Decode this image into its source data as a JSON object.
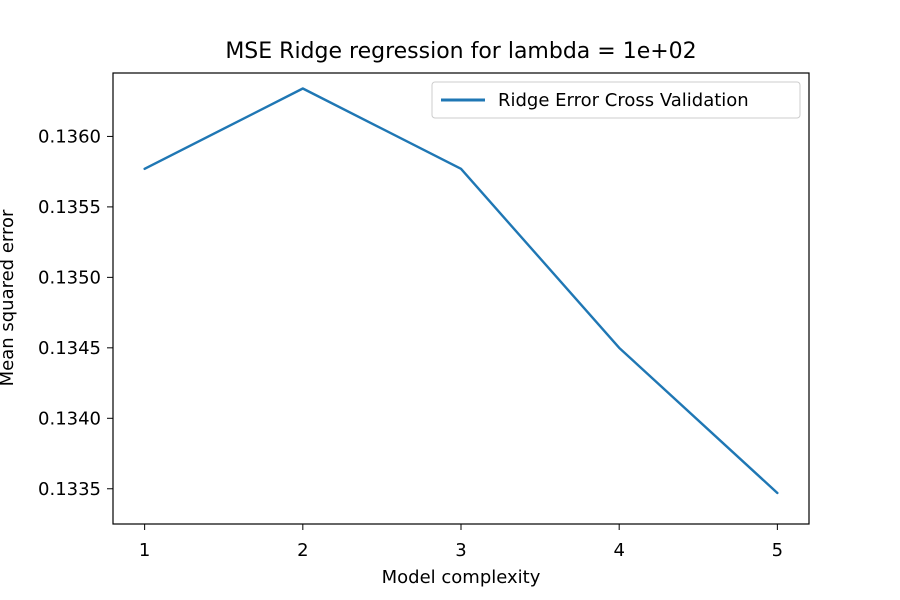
{
  "chart_data": {
    "type": "line",
    "title": "MSE Ridge regression for lambda = 1e+02",
    "xlabel": "Model complexity",
    "ylabel": "Mean squared error",
    "x": [
      1,
      2,
      3,
      4,
      5
    ],
    "xticks": [
      1,
      2,
      3,
      4,
      5
    ],
    "xtick_labels": [
      "1",
      "2",
      "3",
      "4",
      "5"
    ],
    "yticks": [
      0.1335,
      0.134,
      0.1345,
      0.135,
      0.1355,
      0.136
    ],
    "ytick_labels": [
      "0.1335",
      "0.1340",
      "0.1345",
      "0.1350",
      "0.1355",
      "0.1360"
    ],
    "xlim": [
      0.8,
      5.2
    ],
    "ylim": [
      0.13325,
      0.13645
    ],
    "grid": false,
    "legend_position": "upper right",
    "series": [
      {
        "name": "Ridge Error Cross Validation",
        "color": "#1f77b4",
        "values": [
          0.13577,
          0.13634,
          0.13577,
          0.1345,
          0.13347
        ]
      }
    ]
  }
}
